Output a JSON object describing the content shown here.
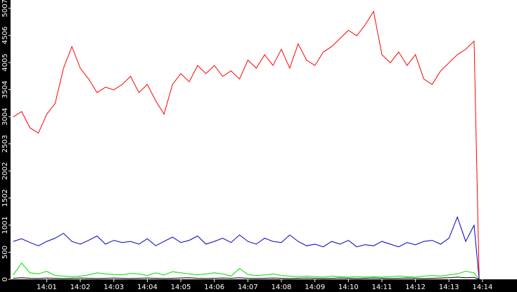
{
  "chart_data": {
    "type": "line",
    "x": [
      0,
      0.25,
      0.5,
      0.75,
      1,
      1.25,
      1.5,
      1.75,
      2,
      2.25,
      2.5,
      2.75,
      3,
      3.25,
      3.5,
      3.75,
      4,
      4.25,
      4.5,
      4.75,
      5,
      5.25,
      5.5,
      5.75,
      6,
      6.25,
      6.5,
      6.75,
      7,
      7.25,
      7.5,
      7.75,
      8,
      8.25,
      8.5,
      8.75,
      9,
      9.25,
      9.5,
      9.75,
      10,
      10.25,
      10.5,
      10.75,
      11,
      11.25,
      11.5,
      11.75,
      12,
      12.25,
      12.5,
      12.75,
      13,
      13.25,
      13.5,
      13.75,
      13.9
    ],
    "series": [
      {
        "color": "#ff0000",
        "values": [
          3000,
          3100,
          2800,
          2700,
          3050,
          3250,
          3900,
          4300,
          3900,
          3700,
          3450,
          3550,
          3500,
          3600,
          3750,
          3450,
          3600,
          3300,
          3050,
          3600,
          3800,
          3650,
          3950,
          3800,
          3950,
          3750,
          3850,
          3700,
          4050,
          3900,
          4150,
          3950,
          4250,
          3900,
          4350,
          4050,
          3950,
          4200,
          4300,
          4450,
          4600,
          4500,
          4700,
          4950,
          4150,
          4000,
          4200,
          3950,
          4150,
          3700,
          3600,
          3850,
          4000,
          4150,
          4250,
          4400,
          0
        ]
      },
      {
        "color": "#0000c0",
        "values": [
          700,
          750,
          680,
          620,
          700,
          760,
          850,
          700,
          650,
          720,
          800,
          650,
          720,
          680,
          700,
          650,
          750,
          620,
          700,
          780,
          680,
          720,
          800,
          650,
          700,
          760,
          680,
          820,
          700,
          650,
          760,
          700,
          680,
          820,
          700,
          620,
          650,
          600,
          700,
          650,
          720,
          600,
          640,
          620,
          700,
          650,
          600,
          680,
          640,
          700,
          720,
          650,
          760,
          1150,
          700,
          1000,
          0
        ]
      },
      {
        "color": "#00e000",
        "values": [
          80,
          300,
          120,
          100,
          150,
          70,
          60,
          50,
          60,
          80,
          120,
          100,
          90,
          80,
          110,
          100,
          70,
          120,
          80,
          140,
          120,
          100,
          80,
          100,
          120,
          100,
          60,
          200,
          90,
          70,
          80,
          100,
          70,
          60,
          50,
          60,
          50,
          40,
          60,
          50,
          40,
          50,
          40,
          50,
          40,
          50,
          60,
          50,
          40,
          60,
          70,
          60,
          80,
          100,
          150,
          120,
          0
        ]
      },
      {
        "color": "#000000",
        "values": [
          20,
          30,
          20,
          15,
          25,
          20,
          15,
          20,
          25,
          20,
          15,
          20,
          25,
          20,
          15,
          20,
          25,
          20,
          15,
          20,
          25,
          30,
          20,
          15,
          20,
          25,
          20,
          30,
          20,
          15,
          20,
          25,
          20,
          15,
          20,
          25,
          20,
          15,
          20,
          25,
          20,
          15,
          20,
          25,
          20,
          15,
          20,
          25,
          20,
          15,
          20,
          25,
          30,
          40,
          30,
          35,
          0
        ]
      }
    ],
    "xlim": [
      -0.08,
      15.03
    ],
    "xticks": [
      {
        "value": 1,
        "label": "14:01"
      },
      {
        "value": 2,
        "label": "14:02"
      },
      {
        "value": 3,
        "label": "14:03"
      },
      {
        "value": 4,
        "label": "14:04"
      },
      {
        "value": 5,
        "label": "14:05"
      },
      {
        "value": 6,
        "label": "14:06"
      },
      {
        "value": 7,
        "label": "14:07"
      },
      {
        "value": 8,
        "label": "14:08"
      },
      {
        "value": 9,
        "label": "14:09"
      },
      {
        "value": 10,
        "label": "14:10"
      },
      {
        "value": 11,
        "label": "14:11"
      },
      {
        "value": 12,
        "label": "14:12"
      },
      {
        "value": 13,
        "label": "14:13"
      },
      {
        "value": 14,
        "label": "14:14"
      }
    ],
    "ylim": [
      0,
      5160
    ],
    "yticks": [
      0,
      500,
      1001,
      1502,
      2002,
      2503,
      3004,
      3504,
      4005,
      4506,
      5007
    ]
  }
}
